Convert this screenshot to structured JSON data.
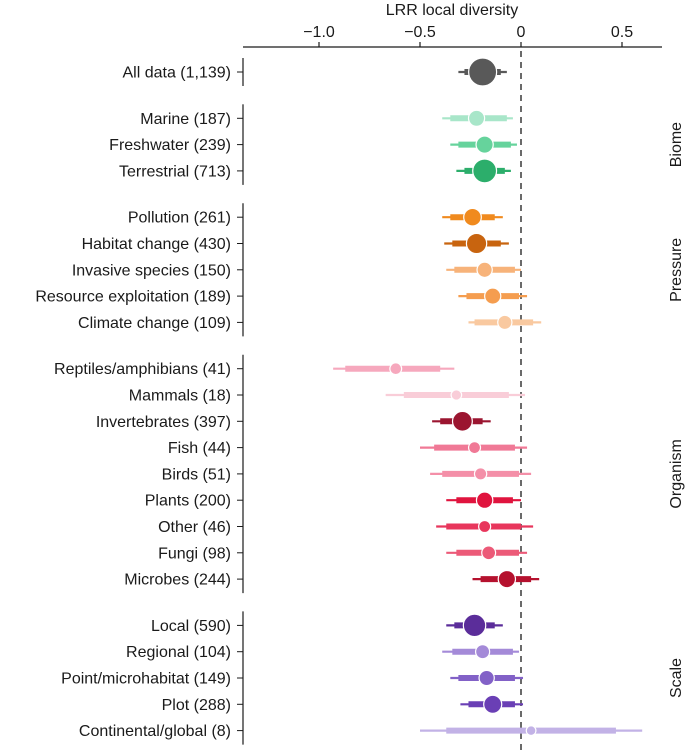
{
  "chart_data": {
    "type": "forest",
    "title": "",
    "xlabel": "LRR local diversity",
    "xlim": [
      -1.4,
      0.7
    ],
    "xticks": [
      -1.0,
      -0.5,
      0,
      0.5
    ],
    "xtick_labels": [
      "−1.0",
      "−0.5",
      "0",
      "0.5"
    ],
    "reference_line": 0,
    "groups": [
      {
        "name": "",
        "rows": [
          {
            "label": "All data (1,139)",
            "estimate": -0.19,
            "ci_thick": [
              -0.28,
              -0.1
            ],
            "ci_thin": [
              -0.31,
              -0.07
            ],
            "n": 1139,
            "color": "#595959"
          }
        ]
      },
      {
        "name": "Biome",
        "rows": [
          {
            "label": "Marine (187)",
            "estimate": -0.22,
            "ci_thick": [
              -0.35,
              -0.07
            ],
            "ci_thin": [
              -0.39,
              -0.04
            ],
            "n": 187,
            "color": "#a8e6c9"
          },
          {
            "label": "Freshwater (239)",
            "estimate": -0.18,
            "ci_thick": [
              -0.31,
              -0.05
            ],
            "ci_thin": [
              -0.35,
              -0.02
            ],
            "n": 239,
            "color": "#66d39c"
          },
          {
            "label": "Terrestrial (713)",
            "estimate": -0.18,
            "ci_thick": [
              -0.28,
              -0.08
            ],
            "ci_thin": [
              -0.32,
              -0.05
            ],
            "n": 713,
            "color": "#2cae6b"
          }
        ]
      },
      {
        "name": "Pressure",
        "rows": [
          {
            "label": "Pollution (261)",
            "estimate": -0.24,
            "ci_thick": [
              -0.35,
              -0.13
            ],
            "ci_thin": [
              -0.39,
              -0.09
            ],
            "n": 261,
            "color": "#f08a1e"
          },
          {
            "label": "Habitat change (430)",
            "estimate": -0.22,
            "ci_thick": [
              -0.34,
              -0.1
            ],
            "ci_thin": [
              -0.38,
              -0.06
            ],
            "n": 430,
            "color": "#c8640f"
          },
          {
            "label": "Invasive species (150)",
            "estimate": -0.18,
            "ci_thick": [
              -0.33,
              -0.03
            ],
            "ci_thin": [
              -0.37,
              0.0
            ],
            "n": 150,
            "color": "#f7b37a"
          },
          {
            "label": "Resource exploitation (189)",
            "estimate": -0.14,
            "ci_thick": [
              -0.27,
              -0.01
            ],
            "ci_thin": [
              -0.31,
              0.03
            ],
            "n": 189,
            "color": "#f59d4f"
          },
          {
            "label": "Climate change (109)",
            "estimate": -0.08,
            "ci_thick": [
              -0.23,
              0.06
            ],
            "ci_thin": [
              -0.26,
              0.1
            ],
            "n": 109,
            "color": "#f9c9a0"
          }
        ]
      },
      {
        "name": "Organism",
        "rows": [
          {
            "label": "Reptiles/amphibians (41)",
            "estimate": -0.62,
            "ci_thick": [
              -0.87,
              -0.4
            ],
            "ci_thin": [
              -0.93,
              -0.33
            ],
            "n": 41,
            "color": "#f6a8bd"
          },
          {
            "label": "Mammals (18)",
            "estimate": -0.32,
            "ci_thick": [
              -0.58,
              -0.06
            ],
            "ci_thin": [
              -0.67,
              0.02
            ],
            "n": 18,
            "color": "#f9cdd8"
          },
          {
            "label": "Invertebrates (397)",
            "estimate": -0.29,
            "ci_thick": [
              -0.4,
              -0.19
            ],
            "ci_thin": [
              -0.44,
              -0.15
            ],
            "n": 397,
            "color": "#9b1530"
          },
          {
            "label": "Fish (44)",
            "estimate": -0.23,
            "ci_thick": [
              -0.43,
              -0.03
            ],
            "ci_thin": [
              -0.5,
              0.03
            ],
            "n": 44,
            "color": "#f07996"
          },
          {
            "label": "Birds (51)",
            "estimate": -0.2,
            "ci_thick": [
              -0.39,
              -0.01
            ],
            "ci_thin": [
              -0.45,
              0.05
            ],
            "n": 51,
            "color": "#f48fa8"
          },
          {
            "label": "Plants (200)",
            "estimate": -0.18,
            "ci_thick": [
              -0.32,
              -0.04
            ],
            "ci_thin": [
              -0.37,
              0.0
            ],
            "n": 200,
            "color": "#e0143e"
          },
          {
            "label": "Other (46)",
            "estimate": -0.18,
            "ci_thick": [
              -0.37,
              0.0
            ],
            "ci_thin": [
              -0.42,
              0.06
            ],
            "n": 46,
            "color": "#e8365c"
          },
          {
            "label": "Fungi (98)",
            "estimate": -0.16,
            "ci_thick": [
              -0.32,
              -0.01
            ],
            "ci_thin": [
              -0.37,
              0.03
            ],
            "n": 98,
            "color": "#ec5a78"
          },
          {
            "label": "Microbes (244)",
            "estimate": -0.07,
            "ci_thick": [
              -0.2,
              0.05
            ],
            "ci_thin": [
              -0.24,
              0.09
            ],
            "n": 244,
            "color": "#b5112e"
          }
        ]
      },
      {
        "name": "Scale",
        "rows": [
          {
            "label": "Local (590)",
            "estimate": -0.23,
            "ci_thick": [
              -0.33,
              -0.13
            ],
            "ci_thin": [
              -0.37,
              -0.09
            ],
            "n": 590,
            "color": "#5b2d9a"
          },
          {
            "label": "Regional (104)",
            "estimate": -0.19,
            "ci_thick": [
              -0.34,
              -0.04
            ],
            "ci_thin": [
              -0.39,
              -0.01
            ],
            "n": 104,
            "color": "#a48ad8"
          },
          {
            "label": "Point/microhabitat (149)",
            "estimate": -0.17,
            "ci_thick": [
              -0.31,
              -0.03
            ],
            "ci_thin": [
              -0.35,
              0.01
            ],
            "n": 149,
            "color": "#8261c7"
          },
          {
            "label": "Plot (288)",
            "estimate": -0.14,
            "ci_thick": [
              -0.26,
              -0.03
            ],
            "ci_thin": [
              -0.3,
              0.01
            ],
            "n": 288,
            "color": "#6a3fb5"
          },
          {
            "label": "Continental/global (8)",
            "estimate": 0.05,
            "ci_thick": [
              -0.37,
              0.47
            ],
            "ci_thin": [
              -0.5,
              0.6
            ],
            "n": 8,
            "color": "#c2b2e6"
          }
        ]
      }
    ]
  }
}
